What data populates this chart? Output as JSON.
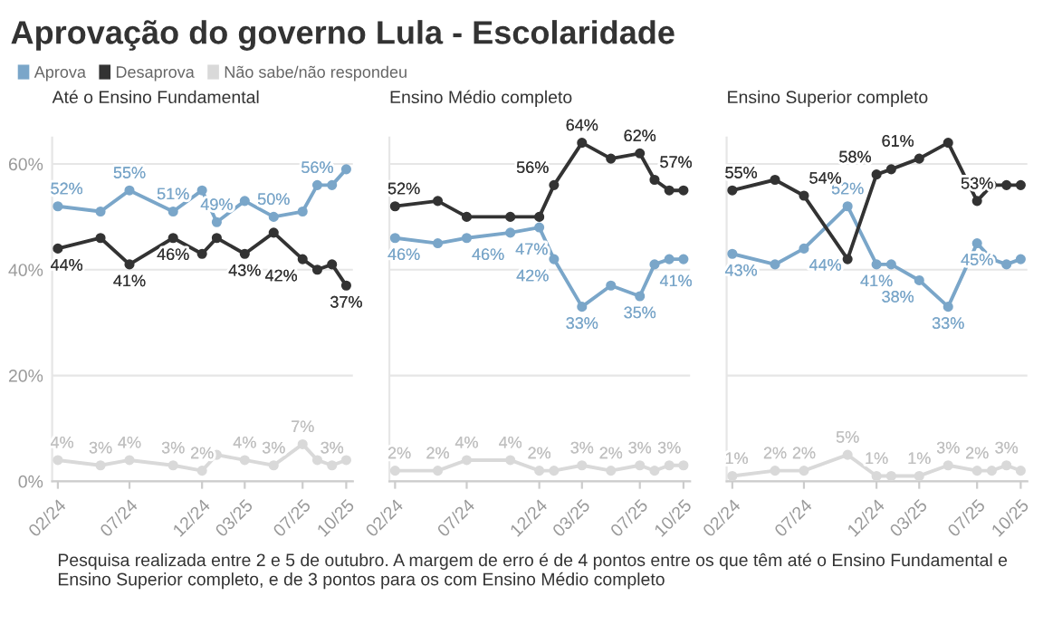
{
  "chart_data": [
    {
      "type": "line",
      "title": "Aprovação do governo Lula - Escolaridade",
      "subtitle": "Até o Ensino Fundamental",
      "x": [
        "2024-02",
        "2024-05",
        "2024-07",
        "2024-10",
        "2024-12",
        "2025-01",
        "2025-03",
        "2025-05",
        "2025-07",
        "2025-08",
        "2025-09",
        "2025-10"
      ],
      "series": [
        {
          "name": "Aprova",
          "color": "#7aa6c9",
          "values": [
            52,
            51,
            55,
            51,
            55,
            49,
            53,
            50,
            51,
            56,
            56,
            59
          ],
          "value_labels": [
            "52%",
            null,
            "55%",
            "51%",
            null,
            "49%",
            null,
            "50%",
            null,
            "56%",
            null,
            null
          ]
        },
        {
          "name": "Desaprova",
          "color": "#333333",
          "values": [
            44,
            46,
            41,
            46,
            43,
            46,
            43,
            47,
            42,
            40,
            41,
            37
          ],
          "value_labels": [
            "44%",
            null,
            "41%",
            "46%",
            null,
            null,
            "43%",
            null,
            "42%",
            null,
            null,
            "37%"
          ]
        },
        {
          "name": "Não sabe/não respondeu",
          "color": "#d9d9d9",
          "values": [
            4,
            3,
            4,
            3,
            2,
            5,
            4,
            3,
            7,
            4,
            3,
            4
          ],
          "value_labels": [
            "4%",
            "3%",
            "4%",
            "3%",
            "2%",
            null,
            "4%",
            "3%",
            "7%",
            null,
            "3%",
            null
          ]
        }
      ],
      "xlim": [
        "2024-01-20",
        "2025-10-15"
      ],
      "xticks": [
        {
          "value": "2024-02",
          "label": "02/24"
        },
        {
          "value": "2024-07",
          "label": "07/24"
        },
        {
          "value": "2024-12",
          "label": "12/24"
        },
        {
          "value": "2025-03",
          "label": "03/25"
        },
        {
          "value": "2025-07",
          "label": "07/25"
        },
        {
          "value": "2025-10",
          "label": "10/25"
        }
      ],
      "ylim": [
        0,
        65
      ],
      "yticks": [
        {
          "value": 0,
          "label": "0%"
        },
        {
          "value": 20,
          "label": "20%"
        },
        {
          "value": 40,
          "label": "40%"
        },
        {
          "value": 60,
          "label": "60%"
        }
      ],
      "grid": "y",
      "legend": "top left",
      "marker": "circle",
      "line_style": "solid",
      "annotations": [
        "Pesquisa realizada entre 2 e 5 de outubro. A margem de erro é de 4 pontos entre os que têm até o Ensino Fundamental e Ensino Superior completo, e de 3 pontos para os com Ensino Médio completo"
      ]
    },
    {
      "type": "line",
      "subtitle": "Ensino Médio completo",
      "x": [
        "2024-02",
        "2024-05",
        "2024-07",
        "2024-10",
        "2024-12",
        "2025-01",
        "2025-03",
        "2025-05",
        "2025-07",
        "2025-08",
        "2025-09",
        "2025-10"
      ],
      "series": [
        {
          "color": "#7aa6c9",
          "values": [
            46,
            45,
            46,
            47,
            48,
            42,
            33,
            37,
            35,
            41,
            42,
            42
          ],
          "value_labels": [
            "46%",
            null,
            "46%",
            "47%",
            null,
            "42%",
            "33%",
            null,
            "35%",
            "41%",
            null,
            null
          ]
        },
        {
          "color": "#333333",
          "values": [
            52,
            53,
            50,
            50,
            50,
            56,
            64,
            61,
            62,
            57,
            55,
            55
          ],
          "value_labels": [
            "52%",
            null,
            null,
            null,
            null,
            "56%",
            "64%",
            null,
            "62%",
            "57%",
            null,
            null
          ]
        },
        {
          "color": "#d9d9d9",
          "values": [
            2,
            2,
            4,
            4,
            2,
            2,
            3,
            2,
            3,
            2,
            3,
            3
          ],
          "value_labels": [
            "2%",
            "2%",
            "4%",
            "4%",
            "2%",
            null,
            "3%",
            "2%",
            "3%",
            null,
            "3%",
            null
          ]
        }
      ],
      "xlim": [
        "2024-01-20",
        "2025-10-15"
      ],
      "xticks": [
        {
          "value": "2024-02",
          "label": "02/24"
        },
        {
          "value": "2024-07",
          "label": "07/24"
        },
        {
          "value": "2024-12",
          "label": "12/24"
        },
        {
          "value": "2025-03",
          "label": "03/25"
        },
        {
          "value": "2025-07",
          "label": "07/25"
        },
        {
          "value": "2025-10",
          "label": "10/25"
        }
      ],
      "ylim": [
        0,
        65
      ],
      "yticks": [
        {
          "value": 0,
          "label": null
        },
        {
          "value": 20,
          "label": null
        },
        {
          "value": 40,
          "label": null
        },
        {
          "value": 60,
          "label": null
        }
      ],
      "tick_labels": "x",
      "grid": "y",
      "marker": "circle",
      "line_style": "solid"
    },
    {
      "type": "line",
      "subtitle": "Ensino Superior completo",
      "x": [
        "2024-02",
        "2024-05",
        "2024-07",
        "2024-10",
        "2024-12",
        "2025-01",
        "2025-03",
        "2025-05",
        "2025-07",
        "2025-08",
        "2025-09",
        "2025-10"
      ],
      "series": [
        {
          "color": "#7aa6c9",
          "values": [
            43,
            41,
            44,
            52,
            41,
            41,
            38,
            33,
            45,
            42,
            41,
            42
          ],
          "value_labels": [
            "43%",
            null,
            "44%",
            "52%",
            "41%",
            null,
            "38%",
            "33%",
            "45%",
            null,
            null,
            null
          ]
        },
        {
          "color": "#333333",
          "values": [
            55,
            57,
            54,
            42,
            58,
            59,
            61,
            64,
            53,
            56,
            56,
            56
          ],
          "value_labels": [
            "55%",
            null,
            "54%",
            null,
            "58%",
            null,
            "61%",
            null,
            "53%",
            null,
            null,
            null
          ]
        },
        {
          "color": "#d9d9d9",
          "values": [
            1,
            2,
            2,
            5,
            1,
            1,
            1,
            3,
            2,
            2,
            3,
            2
          ],
          "value_labels": [
            "1%",
            "2%",
            "2%",
            "5%",
            "1%",
            null,
            "1%",
            "3%",
            "2%",
            null,
            "3%",
            null
          ]
        }
      ],
      "xlim": [
        "2024-01-20",
        "2025-10-15"
      ],
      "xticks": [
        {
          "value": "2024-02",
          "label": "02/24"
        },
        {
          "value": "2024-07",
          "label": "07/24"
        },
        {
          "value": "2024-12",
          "label": "12/24"
        },
        {
          "value": "2025-03",
          "label": "03/25"
        },
        {
          "value": "2025-07",
          "label": "07/25"
        },
        {
          "value": "2025-10",
          "label": "10/25"
        }
      ],
      "ylim": [
        0,
        65
      ],
      "yticks": [
        {
          "value": 0,
          "label": null
        },
        {
          "value": 20,
          "label": null
        },
        {
          "value": 40,
          "label": null
        },
        {
          "value": 60,
          "label": null
        }
      ],
      "tick_labels": "x",
      "grid": "y",
      "marker": "circle",
      "line_style": "solid"
    }
  ]
}
